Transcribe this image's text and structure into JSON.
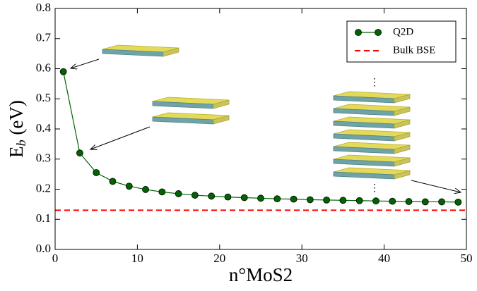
{
  "chart_data": {
    "type": "line",
    "xlabel": "n°MoS2",
    "ylabel": [
      "E",
      "b",
      " (eV)"
    ],
    "xlim": [
      0,
      50
    ],
    "xticks": [
      0,
      10,
      20,
      30,
      40,
      50
    ],
    "ylim": [
      0,
      0.8
    ],
    "yticks": [
      {
        "value": 0,
        "label": "0.0"
      },
      0.1,
      0.2,
      0.3,
      0.4,
      0.5,
      0.6,
      0.7,
      0.8
    ],
    "series": [
      {
        "name": "Q2D",
        "color": "#006400",
        "x": [
          1,
          3,
          5,
          7,
          9,
          11,
          13,
          15,
          17,
          19,
          21,
          23,
          25,
          27,
          29,
          31,
          33,
          35,
          37,
          39,
          41,
          43,
          45,
          47,
          49
        ],
        "values": [
          0.59,
          0.32,
          0.255,
          0.226,
          0.21,
          0.199,
          0.191,
          0.185,
          0.18,
          0.177,
          0.174,
          0.172,
          0.17,
          0.168,
          0.167,
          0.165,
          0.164,
          0.163,
          0.162,
          0.161,
          0.16,
          0.159,
          0.158,
          0.158,
          0.157
        ]
      }
    ],
    "reference_line": {
      "name": "Bulk BSE",
      "value": 0.13,
      "color": "#ff0000",
      "dashed": true
    },
    "legend": "upper right"
  }
}
